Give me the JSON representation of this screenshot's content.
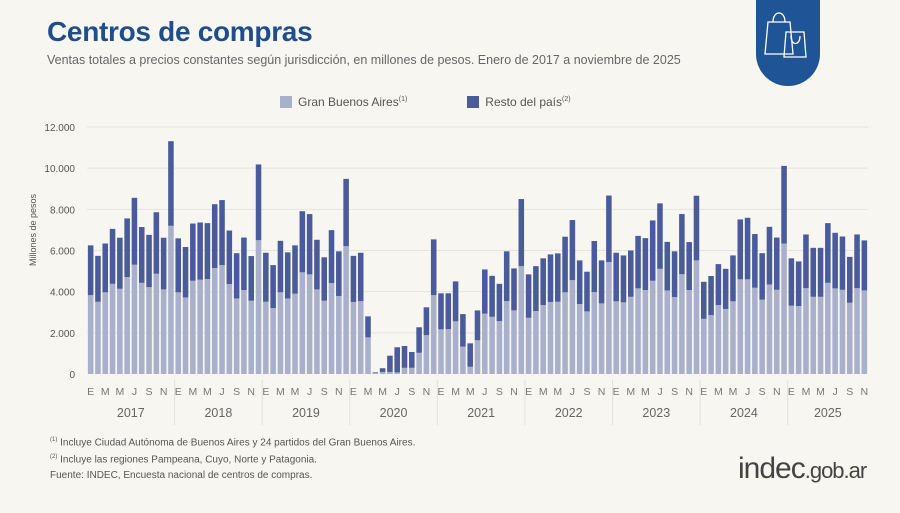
{
  "header": {
    "title": "Centros de compras",
    "subtitle": "Ventas totales a precios constantes según jurisdicción, en millones de pesos. Enero de 2017 a noviembre de 2025",
    "icon": "shopping-bags-icon"
  },
  "footer": {
    "note1_marker": "(1)",
    "note1": "Incluye Ciudad Autónoma de Buenos Aires y 24 partidos del Gran Buenos Aires.",
    "note2_marker": "(2)",
    "note2": "Incluye las regiones Pampeana, Cuyo, Norte y Patagonia.",
    "source": "Fuente: INDEC, Encuesta nacional de centros de compras.",
    "logo_main": "indec",
    "logo_suffix": ".gob.ar"
  },
  "colors": {
    "gba": "#a9b0cc",
    "resto": "#4a5b9c",
    "title": "#1f4e8c",
    "badge": "#1f5596"
  },
  "chart_data": {
    "type": "bar",
    "stacked": true,
    "title": "",
    "xlabel": "",
    "ylabel": "Millones de pesos",
    "ylim": [
      0,
      12000
    ],
    "yticks": [
      "0",
      "2.000",
      "4.000",
      "6.000",
      "8.000",
      "10.000",
      "12.000"
    ],
    "ytick_values": [
      0,
      2000,
      4000,
      6000,
      8000,
      10000,
      12000
    ],
    "grid": true,
    "legend_position": "top",
    "month_tick_labels": [
      "E",
      "M",
      "M",
      "J",
      "S",
      "N"
    ],
    "years": [
      "2017",
      "2018",
      "2019",
      "2020",
      "2021",
      "2022",
      "2023",
      "2024",
      "2025"
    ],
    "period": "2017-01 to 2025-11 (monthly)",
    "series": [
      {
        "name": "Gran Buenos Aires",
        "marker": "(1)",
        "color": "#a9b0cc",
        "values": [
          3830,
          3510,
          3970,
          4380,
          4140,
          4710,
          5310,
          4430,
          4220,
          4870,
          4110,
          7200,
          3970,
          3720,
          4530,
          4580,
          4610,
          5150,
          5290,
          4370,
          3670,
          4080,
          3560,
          6500,
          3510,
          3200,
          3970,
          3670,
          3900,
          4940,
          4840,
          4110,
          3560,
          4420,
          3790,
          6210,
          3500,
          3540,
          1780,
          50,
          100,
          100,
          80,
          300,
          300,
          1030,
          1890,
          3830,
          2170,
          2180,
          2560,
          1330,
          350,
          1640,
          2930,
          2780,
          2570,
          3540,
          3090,
          5240,
          2730,
          3060,
          3350,
          3500,
          3510,
          3970,
          4560,
          3400,
          3040,
          3980,
          3430,
          5440,
          3530,
          3480,
          3750,
          4160,
          4080,
          4530,
          5110,
          4060,
          3740,
          4850,
          4080,
          5520,
          2680,
          2860,
          3350,
          3160,
          3530,
          4600,
          4600,
          4190,
          3610,
          4350,
          4090,
          6340,
          3320,
          3300,
          4170,
          3750,
          3750,
          4430,
          4160,
          4090,
          3460,
          4170,
          4060
        ]
      },
      {
        "name": "Resto del país",
        "marker": "(2)",
        "color": "#4a5b9c",
        "values": [
          2420,
          2230,
          2370,
          2670,
          2480,
          2850,
          3250,
          2710,
          2540,
          2990,
          2510,
          4110,
          2620,
          2450,
          2780,
          2780,
          2720,
          3100,
          3160,
          2600,
          2200,
          2550,
          2170,
          3680,
          2380,
          2090,
          2500,
          2240,
          2350,
          2970,
          2930,
          2410,
          2110,
          2570,
          2170,
          3270,
          2240,
          2350,
          1020,
          30,
          180,
          790,
          1220,
          1060,
          770,
          1240,
          1350,
          2710,
          1750,
          1740,
          1940,
          1580,
          1140,
          1450,
          2150,
          1990,
          1810,
          2420,
          2040,
          3260,
          2110,
          2180,
          2270,
          2310,
          2350,
          2700,
          2920,
          2120,
          1930,
          2480,
          2090,
          3230,
          2360,
          2280,
          2250,
          2550,
          2520,
          2930,
          3180,
          2360,
          2220,
          2920,
          2330,
          3140,
          1800,
          1900,
          1990,
          1950,
          2230,
          2910,
          2990,
          2610,
          2260,
          2800,
          2540,
          3770,
          2300,
          2170,
          2610,
          2380,
          2380,
          2900,
          2700,
          2590,
          2230,
          2610,
          2430
        ]
      }
    ]
  }
}
